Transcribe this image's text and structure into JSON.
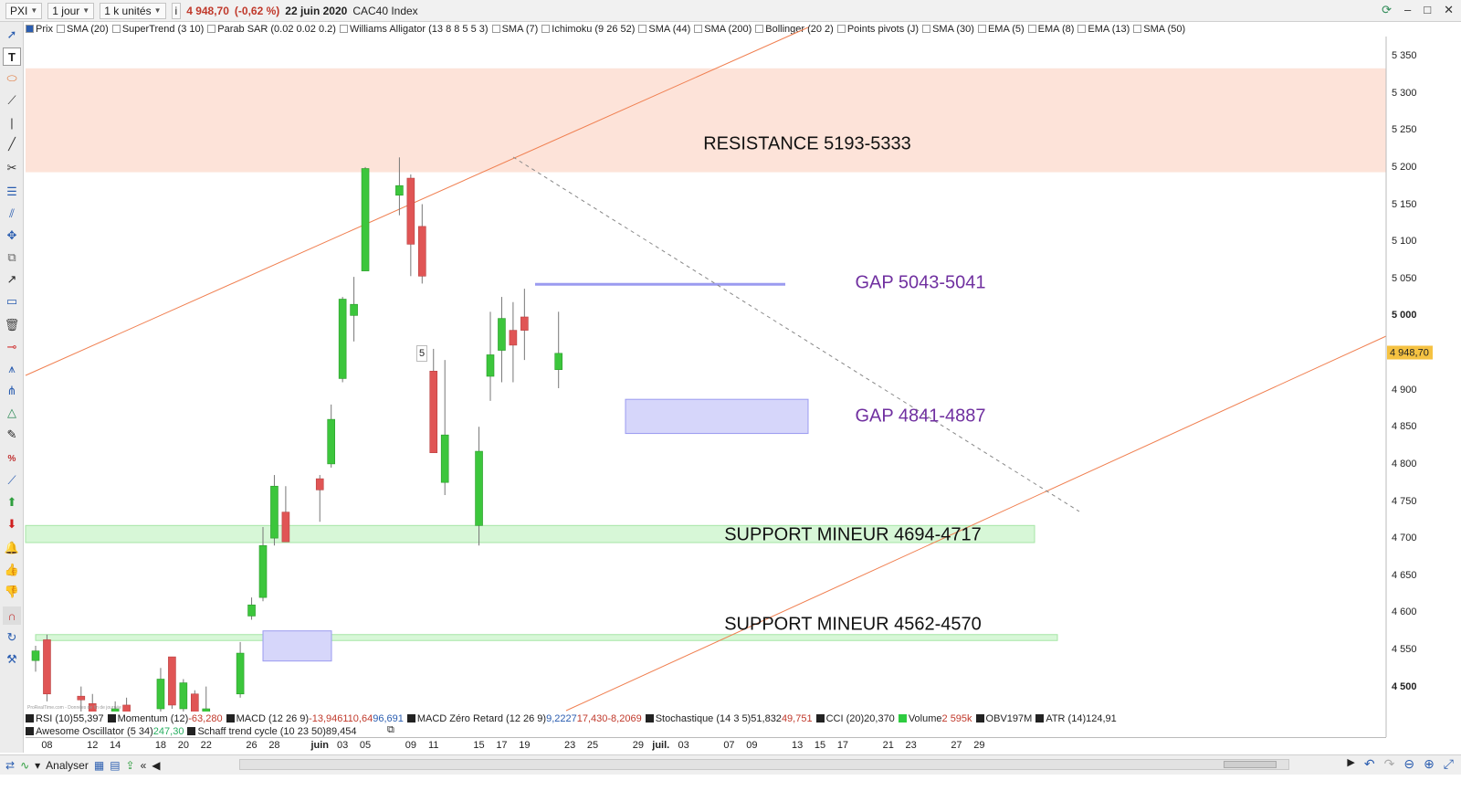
{
  "topbar": {
    "symbol": "PXI",
    "timeframe": "1 jour",
    "units": "1 k unités",
    "info_icon": "i",
    "price": "4 948,70",
    "change": "(-0,62 %)",
    "date": "22 juin 2020",
    "instrument": "CAC40 Index"
  },
  "indicators": [
    {
      "label": "Prix",
      "checked": true
    },
    {
      "label": "SMA (20)",
      "checked": false
    },
    {
      "label": "SuperTrend (3 10)",
      "checked": false
    },
    {
      "label": "Parab SAR (0.02 0.02 0.2)",
      "checked": false
    },
    {
      "label": "Williams Alligator (13 8 8 5 5 3)",
      "checked": false
    },
    {
      "label": "SMA (7)",
      "checked": false
    },
    {
      "label": "Ichimoku (9 26 52)",
      "checked": false
    },
    {
      "label": "SMA (44)",
      "checked": false
    },
    {
      "label": "SMA (200)",
      "checked": false
    },
    {
      "label": "Bollinger (20 2)",
      "checked": false
    },
    {
      "label": "Points pivots (J)",
      "checked": false
    },
    {
      "label": "SMA (30)",
      "checked": false
    },
    {
      "label": "EMA (5)",
      "checked": false
    },
    {
      "label": "EMA (8)",
      "checked": false
    },
    {
      "label": "EMA (13)",
      "checked": false
    },
    {
      "label": "SMA (50)",
      "checked": false
    }
  ],
  "sub_indicators_row1": [
    {
      "name": "RSI (10)",
      "values": [
        {
          "v": "55,397",
          "c": "black"
        }
      ]
    },
    {
      "name": "Momentum (12)",
      "values": [
        {
          "v": "-63,280",
          "c": "red"
        }
      ]
    },
    {
      "name": "MACD (12 26 9)",
      "values": [
        {
          "v": "-13,946",
          "c": "red"
        },
        {
          "v": "110,64",
          "c": "red"
        },
        {
          "v": "96,691",
          "c": "blue"
        }
      ]
    },
    {
      "name": "MACD Zéro Retard (12 26 9)",
      "values": [
        {
          "v": "9,2227",
          "c": "blue"
        },
        {
          "v": "17,430",
          "c": "red"
        },
        {
          "v": "-8,2069",
          "c": "red"
        }
      ]
    },
    {
      "name": "Stochastique (14 3 5)",
      "values": [
        {
          "v": "51,832",
          "c": "black"
        },
        {
          "v": "49,751",
          "c": "red"
        }
      ]
    },
    {
      "name": "CCI (20)",
      "values": [
        {
          "v": "20,370",
          "c": "black"
        }
      ]
    },
    {
      "name": "Volume",
      "values": [
        {
          "v": "2 595k",
          "c": "red"
        }
      ],
      "square_color": "green"
    },
    {
      "name": "OBV",
      "values": [
        {
          "v": "197M",
          "c": "black"
        }
      ]
    },
    {
      "name": "ATR (14)",
      "values": [
        {
          "v": "124,91",
          "c": "black"
        }
      ]
    }
  ],
  "sub_indicators_row2": [
    {
      "name": "Awesome Oscillator (5 34)",
      "values": [
        {
          "v": "247,30",
          "c": "green"
        }
      ]
    },
    {
      "name": "Schaff trend cycle (10 23 50)",
      "values": [
        {
          "v": "89,454",
          "c": "black"
        }
      ]
    }
  ],
  "price_axis": {
    "ticks": [
      "5 350",
      "5 300",
      "5 250",
      "5 200",
      "5 150",
      "5 100",
      "5 050",
      "5 000",
      "4 900",
      "4 850",
      "4 800",
      "4 750",
      "4 700",
      "4 650",
      "4 600",
      "4 550",
      "4 500"
    ],
    "bold_ticks": [
      "5 000",
      "4 500"
    ],
    "current_price": "4 948,70"
  },
  "date_axis": {
    "ticks": [
      "08",
      "12",
      "14",
      "18",
      "20",
      "22",
      "26",
      "28",
      "juin",
      "03",
      "05",
      "09",
      "11",
      "15",
      "17",
      "19",
      "23",
      "25",
      "29",
      "juil.",
      "03",
      "07",
      "09",
      "13",
      "15",
      "17",
      "21",
      "23",
      "27",
      "29"
    ],
    "bold_ticks": [
      "juin",
      "juil."
    ]
  },
  "annotations": {
    "resistance": "RESISTANCE 5193-5333",
    "gap_upper": "GAP 5043-5041",
    "gap_lower": "GAP 4841-4887",
    "support1": "SUPPORT MINEUR 4694-4717",
    "support2": "SUPPORT MINEUR 4562-4570",
    "marker": "5",
    "watermark": "ProRealTime.com - Données de fin de journée"
  },
  "bottombar": {
    "analyze_label": "Analyser"
  },
  "colors": {
    "resistance_zone": "#fde3d9",
    "support_zone": "#d7f7d7",
    "gap_zone": "#d6d6fa",
    "gap_line": "#9b9bf0",
    "trendline": "#f07f50",
    "up_candle": "#3cc63c",
    "down_candle": "#e05555",
    "annotation_purple": "#7030a0",
    "price_tag": "#f5c242"
  },
  "chart_data": {
    "type": "candlestick",
    "title": "",
    "y_unit": "points",
    "ylim": [
      4460,
      5380
    ],
    "candles": [
      {
        "x": "2020-05-07",
        "o": 4535,
        "h": 4555,
        "l": 4520,
        "c": 4548
      },
      {
        "x": "2020-05-08",
        "o": 4563,
        "h": 4570,
        "l": 4480,
        "c": 4490
      },
      {
        "x": "2020-05-11",
        "o": 4487,
        "h": 4500,
        "l": 4465,
        "c": 4482
      },
      {
        "x": "2020-05-12",
        "o": 4477,
        "h": 4490,
        "l": 4455,
        "c": 4465
      },
      {
        "x": "2020-05-14",
        "o": 4440,
        "h": 4480,
        "l": 4430,
        "c": 4470
      },
      {
        "x": "2020-05-15",
        "o": 4475,
        "h": 4485,
        "l": 4440,
        "c": 4460
      },
      {
        "x": "2020-05-18",
        "o": 4470,
        "h": 4525,
        "l": 4465,
        "c": 4510
      },
      {
        "x": "2020-05-19",
        "o": 4540,
        "h": 4540,
        "l": 4470,
        "c": 4475
      },
      {
        "x": "2020-05-20",
        "o": 4470,
        "h": 4510,
        "l": 4465,
        "c": 4505
      },
      {
        "x": "2020-05-21",
        "o": 4490,
        "h": 4495,
        "l": 4455,
        "c": 4460
      },
      {
        "x": "2020-05-22",
        "o": 4455,
        "h": 4500,
        "l": 4445,
        "c": 4470
      },
      {
        "x": "2020-05-25",
        "o": 4490,
        "h": 4560,
        "l": 4485,
        "c": 4545
      },
      {
        "x": "2020-05-26",
        "o": 4595,
        "h": 4620,
        "l": 4590,
        "c": 4610
      },
      {
        "x": "2020-05-27",
        "o": 4620,
        "h": 4715,
        "l": 4615,
        "c": 4690
      },
      {
        "x": "2020-05-28",
        "o": 4700,
        "h": 4785,
        "l": 4690,
        "c": 4770
      },
      {
        "x": "2020-05-29",
        "o": 4735,
        "h": 4770,
        "l": 4695,
        "c": 4695
      },
      {
        "x": "2020-06-01",
        "o": 4780,
        "h": 4785,
        "l": 4722,
        "c": 4765
      },
      {
        "x": "2020-06-02",
        "o": 4800,
        "h": 4880,
        "l": 4795,
        "c": 4860
      },
      {
        "x": "2020-06-03",
        "o": 4915,
        "h": 5025,
        "l": 4910,
        "c": 5022
      },
      {
        "x": "2020-06-04",
        "o": 5000,
        "h": 5052,
        "l": 4965,
        "c": 5015
      },
      {
        "x": "2020-06-05",
        "o": 5060,
        "h": 5200,
        "l": 5060,
        "c": 5198
      },
      {
        "x": "2020-06-08",
        "o": 5162,
        "h": 5213,
        "l": 5135,
        "c": 5175
      },
      {
        "x": "2020-06-09",
        "o": 5185,
        "h": 5190,
        "l": 5053,
        "c": 5096
      },
      {
        "x": "2020-06-10",
        "o": 5120,
        "h": 5150,
        "l": 5043,
        "c": 5053
      },
      {
        "x": "2020-06-11",
        "o": 4925,
        "h": 4955,
        "l": 4815,
        "c": 4815
      },
      {
        "x": "2020-06-12",
        "o": 4775,
        "h": 4940,
        "l": 4758,
        "c": 4839
      },
      {
        "x": "2020-06-15",
        "o": 4717,
        "h": 4850,
        "l": 4690,
        "c": 4817
      },
      {
        "x": "2020-06-16",
        "o": 4918,
        "h": 5005,
        "l": 4885,
        "c": 4947
      },
      {
        "x": "2020-06-17",
        "o": 4953,
        "h": 5025,
        "l": 4910,
        "c": 4996
      },
      {
        "x": "2020-06-18",
        "o": 4980,
        "h": 5018,
        "l": 4910,
        "c": 4960
      },
      {
        "x": "2020-06-19",
        "o": 4998,
        "h": 5036,
        "l": 4940,
        "c": 4980
      },
      {
        "x": "2020-06-22",
        "o": 4927,
        "h": 5005,
        "l": 4902,
        "c": 4949
      }
    ],
    "zones": [
      {
        "label": "RESISTANCE 5193-5333",
        "from": 5193,
        "to": 5333,
        "kind": "resistance"
      },
      {
        "label": "SUPPORT MINEUR 4694-4717",
        "from": 4694,
        "to": 4717,
        "kind": "support"
      },
      {
        "label": "SUPPORT MINEUR 4562-4570",
        "from": 4562,
        "to": 4570,
        "kind": "support"
      },
      {
        "label": "GAP 4841-4887",
        "from": 4841,
        "to": 4887,
        "kind": "gap"
      },
      {
        "label": "GAP 5043-5041",
        "from": 5041,
        "to": 5043,
        "kind": "gap"
      }
    ],
    "trendlines": [
      {
        "kind": "channel-upper",
        "style": "solid"
      },
      {
        "kind": "channel-lower",
        "style": "solid"
      },
      {
        "kind": "resistance-diagonal",
        "style": "dashed"
      }
    ]
  }
}
